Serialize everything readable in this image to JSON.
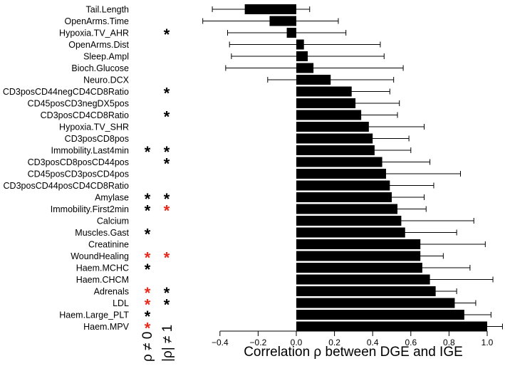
{
  "chart_data": {
    "type": "bar",
    "orientation": "horizontal",
    "xlabel": "Correlation ρ between DGE and IGE",
    "xlim": [
      -0.4,
      1.0
    ],
    "xticks": [
      -0.4,
      -0.2,
      0.0,
      0.2,
      0.4,
      0.6,
      0.8,
      1.0
    ],
    "xtick_labels": [
      "−0.4",
      "−0.2",
      "0.0",
      "0.2",
      "0.4",
      "0.6",
      "0.8",
      "1.0"
    ],
    "significance_columns": [
      "ρ ≠ 0",
      "|ρ| ≠ 1"
    ],
    "star_symbol": "*",
    "star_colors": {
      "black": "#000000",
      "red": "#e8291c"
    },
    "bar_color": "#000000",
    "series": [
      {
        "name": "Tail.Length",
        "value": -0.27,
        "err_low": -0.44,
        "err_high": 0.07,
        "sig1": null,
        "sig2": null
      },
      {
        "name": "OpenArms.Time",
        "value": -0.14,
        "err_low": -0.49,
        "err_high": 0.22,
        "sig1": null,
        "sig2": null
      },
      {
        "name": "Hypoxia.TV_AHR",
        "value": -0.05,
        "err_low": -0.36,
        "err_high": 0.26,
        "sig1": null,
        "sig2": "black"
      },
      {
        "name": "OpenArms.Dist",
        "value": 0.04,
        "err_low": -0.35,
        "err_high": 0.44,
        "sig1": null,
        "sig2": null
      },
      {
        "name": "Sleep.Ampl",
        "value": 0.06,
        "err_low": -0.34,
        "err_high": 0.46,
        "sig1": null,
        "sig2": null
      },
      {
        "name": "Bioch.Glucose",
        "value": 0.09,
        "err_low": -0.37,
        "err_high": 0.56,
        "sig1": null,
        "sig2": null
      },
      {
        "name": "Neuro.DCX",
        "value": 0.18,
        "err_low": -0.15,
        "err_high": 0.51,
        "sig1": null,
        "sig2": null
      },
      {
        "name": "CD3posCD44negCD4CD8Ratio",
        "value": 0.29,
        "err_low": 0.1,
        "err_high": 0.49,
        "sig1": null,
        "sig2": "black"
      },
      {
        "name": "CD45posCD3negDX5pos",
        "value": 0.31,
        "err_low": 0.08,
        "err_high": 0.54,
        "sig1": null,
        "sig2": null
      },
      {
        "name": "CD3posCD4CD8Ratio",
        "value": 0.34,
        "err_low": 0.16,
        "err_high": 0.53,
        "sig1": null,
        "sig2": "black"
      },
      {
        "name": "Hypoxia.TV_SHR",
        "value": 0.38,
        "err_low": 0.1,
        "err_high": 0.67,
        "sig1": null,
        "sig2": null
      },
      {
        "name": "CD3posCD8pos",
        "value": 0.4,
        "err_low": 0.21,
        "err_high": 0.59,
        "sig1": null,
        "sig2": null
      },
      {
        "name": "Immobility.Last4min",
        "value": 0.41,
        "err_low": 0.23,
        "err_high": 0.6,
        "sig1": "black",
        "sig2": "black"
      },
      {
        "name": "CD3posCD8posCD44pos",
        "value": 0.45,
        "err_low": 0.21,
        "err_high": 0.7,
        "sig1": null,
        "sig2": "black"
      },
      {
        "name": "CD45posCD3posCD4pos",
        "value": 0.47,
        "err_low": 0.09,
        "err_high": 0.86,
        "sig1": null,
        "sig2": null
      },
      {
        "name": "CD3posCD44posCD4CD8Ratio",
        "value": 0.49,
        "err_low": 0.26,
        "err_high": 0.72,
        "sig1": null,
        "sig2": null
      },
      {
        "name": "Amylase",
        "value": 0.5,
        "err_low": 0.33,
        "err_high": 0.67,
        "sig1": "black",
        "sig2": "black"
      },
      {
        "name": "Immobility.First2min",
        "value": 0.53,
        "err_low": 0.38,
        "err_high": 0.68,
        "sig1": "black",
        "sig2": "red"
      },
      {
        "name": "Calcium",
        "value": 0.55,
        "err_low": 0.17,
        "err_high": 0.93,
        "sig1": null,
        "sig2": null
      },
      {
        "name": "Muscles.Gast",
        "value": 0.57,
        "err_low": 0.3,
        "err_high": 0.84,
        "sig1": "black",
        "sig2": null
      },
      {
        "name": "Creatinine",
        "value": 0.65,
        "err_low": 0.31,
        "err_high": 0.99,
        "sig1": null,
        "sig2": null
      },
      {
        "name": "WoundHealing",
        "value": 0.65,
        "err_low": 0.53,
        "err_high": 0.77,
        "sig1": "red",
        "sig2": "red"
      },
      {
        "name": "Haem.MCHC",
        "value": 0.66,
        "err_low": 0.41,
        "err_high": 0.91,
        "sig1": "black",
        "sig2": null
      },
      {
        "name": "Haem.CHCM",
        "value": 0.7,
        "err_low": 0.38,
        "err_high": 1.03,
        "sig1": null,
        "sig2": null
      },
      {
        "name": "Adrenals",
        "value": 0.73,
        "err_low": 0.61,
        "err_high": 0.84,
        "sig1": "red",
        "sig2": "black"
      },
      {
        "name": "LDL",
        "value": 0.83,
        "err_low": 0.73,
        "err_high": 0.94,
        "sig1": "red",
        "sig2": "black"
      },
      {
        "name": "Haem.Large_PLT",
        "value": 0.88,
        "err_low": 0.73,
        "err_high": 1.02,
        "sig1": "black",
        "sig2": null
      },
      {
        "name": "Haem.MPV",
        "value": 1.0,
        "err_low": 0.91,
        "err_high": 1.08,
        "sig1": "red",
        "sig2": null
      }
    ]
  }
}
